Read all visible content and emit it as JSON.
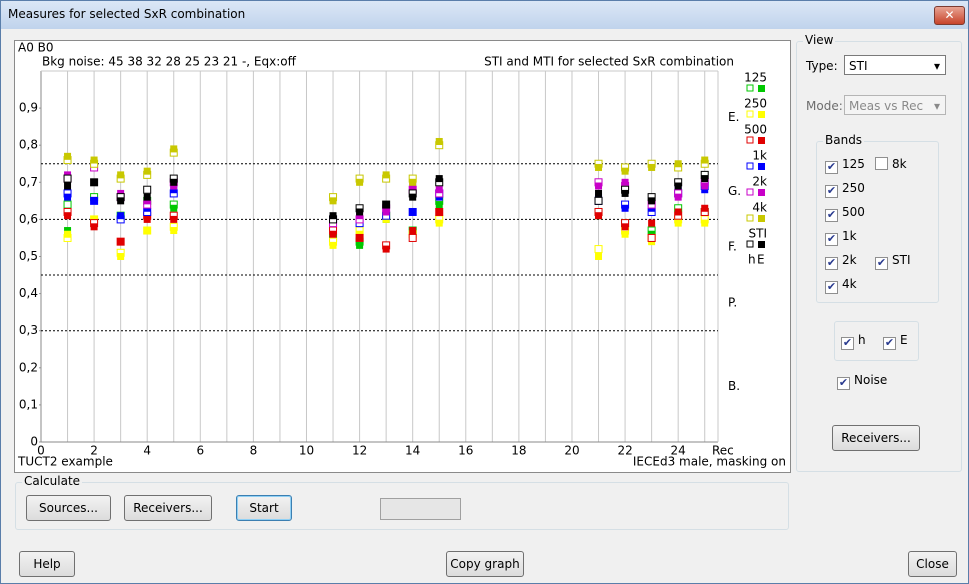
{
  "window": {
    "title": "Measures for selected SxR combination"
  },
  "chart_data": {
    "type": "scatter",
    "header_left": "A0 B0",
    "subtitle": "Bkg noise: 45 38 32 28 25 23 21 -,  Eqx:off",
    "title": "STI and MTI for selected SxR combination",
    "footer_left": "TUCT2 example",
    "footer_right": "IECEd3 male, masking on",
    "x_label": "Rec",
    "x": [
      1,
      2,
      3,
      4,
      5,
      11,
      12,
      13,
      14,
      15,
      21,
      22,
      23,
      24,
      25
    ],
    "xlim": [
      0,
      25.5
    ],
    "xticks": [
      0,
      2,
      4,
      6,
      8,
      10,
      12,
      14,
      16,
      18,
      20,
      22,
      24
    ],
    "ylim": [
      0,
      1
    ],
    "yticks": [
      0,
      {
        "value": 0.1,
        "label": "0,1"
      },
      {
        "value": 0.2,
        "label": "0,2"
      },
      {
        "value": 0.3,
        "label": "0,3"
      },
      {
        "value": 0.4,
        "label": "0,4"
      },
      {
        "value": 0.5,
        "label": "0,5"
      },
      {
        "value": 0.6,
        "label": "0,6"
      },
      {
        "value": 0.7,
        "label": "0,7"
      },
      {
        "value": 0.8,
        "label": "0,8"
      },
      {
        "value": 0.9,
        "label": "0,9"
      }
    ],
    "grid": true,
    "thresholds": [
      0.3,
      0.45,
      0.6,
      0.75
    ],
    "ratings": [
      "B.",
      "P.",
      "F.",
      "G.",
      "E."
    ],
    "marker_legend": [
      "h",
      "E"
    ],
    "series": [
      {
        "name": "125",
        "color": "#00c800",
        "values": [
          0.57,
          0.65,
          0.6,
          0.64,
          0.63,
          0.54,
          0.53,
          0.6,
          0.56,
          0.64,
          0.61,
          0.58,
          0.56,
          0.62,
          0.61
        ],
        "h_values": [
          0.64,
          0.66,
          0.61,
          0.65,
          0.64,
          0.55,
          0.54,
          0.61,
          0.57,
          0.65,
          0.62,
          0.59,
          0.57,
          0.63,
          0.62
        ]
      },
      {
        "name": "250",
        "color": "#ffff00",
        "values": [
          0.56,
          0.6,
          0.5,
          0.57,
          0.57,
          0.53,
          0.56,
          0.6,
          0.55,
          0.59,
          0.5,
          0.56,
          0.54,
          0.59,
          0.59
        ],
        "h_values": [
          0.55,
          0.6,
          0.51,
          0.57,
          0.58,
          0.54,
          0.57,
          0.61,
          0.56,
          0.6,
          0.52,
          0.57,
          0.55,
          0.6,
          0.6
        ]
      },
      {
        "name": "500",
        "color": "#e00000",
        "values": [
          0.61,
          0.58,
          0.54,
          0.6,
          0.6,
          0.56,
          0.55,
          0.52,
          0.57,
          0.62,
          0.61,
          0.58,
          0.59,
          0.62,
          0.63
        ],
        "h_values": [
          0.62,
          0.59,
          0.54,
          0.61,
          0.61,
          0.57,
          0.55,
          0.53,
          0.55,
          0.62,
          0.62,
          0.59,
          0.55,
          0.61,
          0.62
        ]
      },
      {
        "name": "1k",
        "color": "#0000ff",
        "values": [
          0.66,
          0.65,
          0.61,
          0.63,
          0.68,
          0.6,
          0.6,
          0.62,
          0.62,
          0.66,
          0.66,
          0.63,
          0.63,
          0.68,
          0.68
        ],
        "h_values": [
          0.67,
          0.65,
          0.6,
          0.62,
          0.67,
          0.6,
          0.59,
          0.61,
          0.62,
          0.67,
          0.65,
          0.64,
          0.62,
          0.67,
          0.69
        ]
      },
      {
        "name": "2k",
        "color": "#c800c8",
        "values": [
          0.72,
          0.75,
          0.67,
          0.65,
          0.69,
          0.6,
          0.61,
          0.62,
          0.69,
          0.68,
          0.69,
          0.7,
          0.65,
          0.66,
          0.69
        ],
        "h_values": [
          0.71,
          0.74,
          0.66,
          0.64,
          0.7,
          0.59,
          0.6,
          0.63,
          0.68,
          0.67,
          0.7,
          0.69,
          0.64,
          0.67,
          0.7
        ]
      },
      {
        "name": "4k",
        "color": "#c8c800",
        "values": [
          0.77,
          0.76,
          0.72,
          0.73,
          0.79,
          0.65,
          0.7,
          0.72,
          0.7,
          0.81,
          0.74,
          0.73,
          0.74,
          0.75,
          0.76
        ],
        "h_values": [
          0.76,
          0.75,
          0.71,
          0.72,
          0.78,
          0.66,
          0.71,
          0.71,
          0.71,
          0.8,
          0.75,
          0.74,
          0.75,
          0.74,
          0.75
        ]
      },
      {
        "name": "STI",
        "color": "#000000",
        "values": [
          0.69,
          0.7,
          0.65,
          0.66,
          0.7,
          0.61,
          0.62,
          0.64,
          0.66,
          0.71,
          0.67,
          0.67,
          0.65,
          0.69,
          0.71
        ],
        "h_values": [
          0.71,
          0.7,
          0.66,
          0.68,
          0.71,
          0.6,
          0.63,
          0.64,
          0.67,
          0.7,
          0.65,
          0.68,
          0.66,
          0.7,
          0.72
        ]
      }
    ]
  },
  "view": {
    "group": "View",
    "type_label": "Type:",
    "type_value": "STI",
    "mode_label": "Mode:",
    "mode_value": "Meas vs Rec",
    "bands_group": "Bands",
    "bands": [
      {
        "label": "125",
        "checked": true
      },
      {
        "label": "8k",
        "checked": false
      },
      {
        "label": "250",
        "checked": true
      },
      {
        "label": "500",
        "checked": true
      },
      {
        "label": "1k",
        "checked": true
      },
      {
        "label": "2k",
        "checked": true
      },
      {
        "label": "STI",
        "checked": true
      },
      {
        "label": "4k",
        "checked": true
      }
    ],
    "markers": [
      {
        "label": "h",
        "checked": true
      },
      {
        "label": "E",
        "checked": true
      }
    ],
    "noise": {
      "label": "Noise",
      "checked": true
    },
    "receivers_button": "Receivers..."
  },
  "calculate": {
    "group": "Calculate",
    "sources_button": "Sources...",
    "receivers_button": "Receivers...",
    "start_button": "Start"
  },
  "footer": {
    "help": "Help",
    "copy": "Copy graph",
    "close": "Close"
  }
}
